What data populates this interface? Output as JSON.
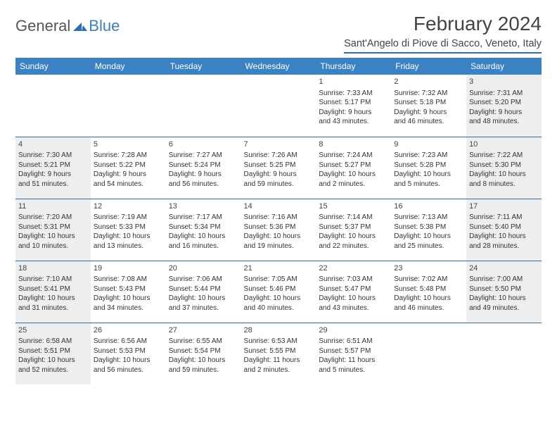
{
  "brand": {
    "part1": "General",
    "part2": "Blue"
  },
  "title": "February 2024",
  "location": "Sant'Angelo di Piove di Sacco, Veneto, Italy",
  "colors": {
    "header_bg": "#3b82c4",
    "header_text": "#ffffff",
    "rule": "#2c6fb3",
    "shaded_bg": "#eceef0",
    "page_bg": "#ffffff",
    "text": "#333333"
  },
  "day_headers": [
    "Sunday",
    "Monday",
    "Tuesday",
    "Wednesday",
    "Thursday",
    "Friday",
    "Saturday"
  ],
  "weeks": [
    [
      {
        "blank": true
      },
      {
        "blank": true
      },
      {
        "blank": true
      },
      {
        "blank": true
      },
      {
        "day": "1",
        "sunrise": "Sunrise: 7:33 AM",
        "sunset": "Sunset: 5:17 PM",
        "daylight1": "Daylight: 9 hours",
        "daylight2": "and 43 minutes."
      },
      {
        "day": "2",
        "sunrise": "Sunrise: 7:32 AM",
        "sunset": "Sunset: 5:18 PM",
        "daylight1": "Daylight: 9 hours",
        "daylight2": "and 46 minutes."
      },
      {
        "day": "3",
        "sunrise": "Sunrise: 7:31 AM",
        "sunset": "Sunset: 5:20 PM",
        "daylight1": "Daylight: 9 hours",
        "daylight2": "and 48 minutes.",
        "shaded": true
      }
    ],
    [
      {
        "day": "4",
        "sunrise": "Sunrise: 7:30 AM",
        "sunset": "Sunset: 5:21 PM",
        "daylight1": "Daylight: 9 hours",
        "daylight2": "and 51 minutes.",
        "shaded": true
      },
      {
        "day": "5",
        "sunrise": "Sunrise: 7:28 AM",
        "sunset": "Sunset: 5:22 PM",
        "daylight1": "Daylight: 9 hours",
        "daylight2": "and 54 minutes."
      },
      {
        "day": "6",
        "sunrise": "Sunrise: 7:27 AM",
        "sunset": "Sunset: 5:24 PM",
        "daylight1": "Daylight: 9 hours",
        "daylight2": "and 56 minutes."
      },
      {
        "day": "7",
        "sunrise": "Sunrise: 7:26 AM",
        "sunset": "Sunset: 5:25 PM",
        "daylight1": "Daylight: 9 hours",
        "daylight2": "and 59 minutes."
      },
      {
        "day": "8",
        "sunrise": "Sunrise: 7:24 AM",
        "sunset": "Sunset: 5:27 PM",
        "daylight1": "Daylight: 10 hours",
        "daylight2": "and 2 minutes."
      },
      {
        "day": "9",
        "sunrise": "Sunrise: 7:23 AM",
        "sunset": "Sunset: 5:28 PM",
        "daylight1": "Daylight: 10 hours",
        "daylight2": "and 5 minutes."
      },
      {
        "day": "10",
        "sunrise": "Sunrise: 7:22 AM",
        "sunset": "Sunset: 5:30 PM",
        "daylight1": "Daylight: 10 hours",
        "daylight2": "and 8 minutes.",
        "shaded": true
      }
    ],
    [
      {
        "day": "11",
        "sunrise": "Sunrise: 7:20 AM",
        "sunset": "Sunset: 5:31 PM",
        "daylight1": "Daylight: 10 hours",
        "daylight2": "and 10 minutes.",
        "shaded": true
      },
      {
        "day": "12",
        "sunrise": "Sunrise: 7:19 AM",
        "sunset": "Sunset: 5:33 PM",
        "daylight1": "Daylight: 10 hours",
        "daylight2": "and 13 minutes."
      },
      {
        "day": "13",
        "sunrise": "Sunrise: 7:17 AM",
        "sunset": "Sunset: 5:34 PM",
        "daylight1": "Daylight: 10 hours",
        "daylight2": "and 16 minutes."
      },
      {
        "day": "14",
        "sunrise": "Sunrise: 7:16 AM",
        "sunset": "Sunset: 5:36 PM",
        "daylight1": "Daylight: 10 hours",
        "daylight2": "and 19 minutes."
      },
      {
        "day": "15",
        "sunrise": "Sunrise: 7:14 AM",
        "sunset": "Sunset: 5:37 PM",
        "daylight1": "Daylight: 10 hours",
        "daylight2": "and 22 minutes."
      },
      {
        "day": "16",
        "sunrise": "Sunrise: 7:13 AM",
        "sunset": "Sunset: 5:38 PM",
        "daylight1": "Daylight: 10 hours",
        "daylight2": "and 25 minutes."
      },
      {
        "day": "17",
        "sunrise": "Sunrise: 7:11 AM",
        "sunset": "Sunset: 5:40 PM",
        "daylight1": "Daylight: 10 hours",
        "daylight2": "and 28 minutes.",
        "shaded": true
      }
    ],
    [
      {
        "day": "18",
        "sunrise": "Sunrise: 7:10 AM",
        "sunset": "Sunset: 5:41 PM",
        "daylight1": "Daylight: 10 hours",
        "daylight2": "and 31 minutes.",
        "shaded": true
      },
      {
        "day": "19",
        "sunrise": "Sunrise: 7:08 AM",
        "sunset": "Sunset: 5:43 PM",
        "daylight1": "Daylight: 10 hours",
        "daylight2": "and 34 minutes."
      },
      {
        "day": "20",
        "sunrise": "Sunrise: 7:06 AM",
        "sunset": "Sunset: 5:44 PM",
        "daylight1": "Daylight: 10 hours",
        "daylight2": "and 37 minutes."
      },
      {
        "day": "21",
        "sunrise": "Sunrise: 7:05 AM",
        "sunset": "Sunset: 5:46 PM",
        "daylight1": "Daylight: 10 hours",
        "daylight2": "and 40 minutes."
      },
      {
        "day": "22",
        "sunrise": "Sunrise: 7:03 AM",
        "sunset": "Sunset: 5:47 PM",
        "daylight1": "Daylight: 10 hours",
        "daylight2": "and 43 minutes."
      },
      {
        "day": "23",
        "sunrise": "Sunrise: 7:02 AM",
        "sunset": "Sunset: 5:48 PM",
        "daylight1": "Daylight: 10 hours",
        "daylight2": "and 46 minutes."
      },
      {
        "day": "24",
        "sunrise": "Sunrise: 7:00 AM",
        "sunset": "Sunset: 5:50 PM",
        "daylight1": "Daylight: 10 hours",
        "daylight2": "and 49 minutes.",
        "shaded": true
      }
    ],
    [
      {
        "day": "25",
        "sunrise": "Sunrise: 6:58 AM",
        "sunset": "Sunset: 5:51 PM",
        "daylight1": "Daylight: 10 hours",
        "daylight2": "and 52 minutes.",
        "shaded": true
      },
      {
        "day": "26",
        "sunrise": "Sunrise: 6:56 AM",
        "sunset": "Sunset: 5:53 PM",
        "daylight1": "Daylight: 10 hours",
        "daylight2": "and 56 minutes."
      },
      {
        "day": "27",
        "sunrise": "Sunrise: 6:55 AM",
        "sunset": "Sunset: 5:54 PM",
        "daylight1": "Daylight: 10 hours",
        "daylight2": "and 59 minutes."
      },
      {
        "day": "28",
        "sunrise": "Sunrise: 6:53 AM",
        "sunset": "Sunset: 5:55 PM",
        "daylight1": "Daylight: 11 hours",
        "daylight2": "and 2 minutes."
      },
      {
        "day": "29",
        "sunrise": "Sunrise: 6:51 AM",
        "sunset": "Sunset: 5:57 PM",
        "daylight1": "Daylight: 11 hours",
        "daylight2": "and 5 minutes."
      },
      {
        "blank": true
      },
      {
        "blank": true
      }
    ]
  ]
}
